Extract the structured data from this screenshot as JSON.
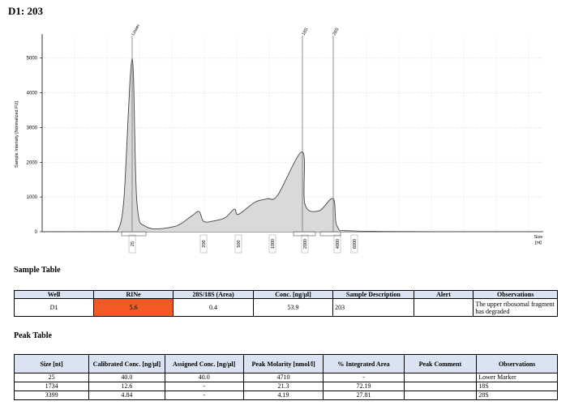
{
  "title": "D1: 203",
  "chart_data": {
    "type": "area",
    "ylabel": "Sample Intensity [Normalized FU]",
    "xlabel": "Size\n[nt]",
    "ylim": [
      0,
      5600
    ],
    "yticks": [
      0,
      1000,
      2000,
      3000,
      4000,
      5000
    ],
    "xticks": [
      "25",
      "200",
      "500",
      "1000",
      "2000",
      "4000",
      "6000"
    ],
    "peak_markers": [
      "Lower",
      "18S",
      "28S"
    ],
    "grid": true,
    "series": [
      {
        "values": [
          {
            "size": "20",
            "y": 0
          },
          {
            "size": "22",
            "y": 900
          },
          {
            "size": "25",
            "y": 5000
          },
          {
            "size": "28",
            "y": 900
          },
          {
            "size": "35",
            "y": 150
          },
          {
            "size": "100",
            "y": 150
          },
          {
            "size": "150",
            "y": 450
          },
          {
            "size": "180",
            "y": 580
          },
          {
            "size": "200",
            "y": 300
          },
          {
            "size": "250",
            "y": 300
          },
          {
            "size": "350",
            "y": 400
          },
          {
            "size": "450",
            "y": 650
          },
          {
            "size": "500",
            "y": 500
          },
          {
            "size": "700",
            "y": 850
          },
          {
            "size": "900",
            "y": 950
          },
          {
            "size": "1100",
            "y": 1050
          },
          {
            "size": "1734",
            "y": 2300
          },
          {
            "size": "2000",
            "y": 800
          },
          {
            "size": "2600",
            "y": 600
          },
          {
            "size": "3399",
            "y": 950
          },
          {
            "size": "4000",
            "y": 150
          },
          {
            "size": "6000",
            "y": 20
          },
          {
            "size": "9000",
            "y": 0
          }
        ]
      }
    ]
  },
  "sample_table": {
    "title": "Sample Table",
    "headers": [
      "Well",
      "RINe",
      "28S/18S (Area)",
      "Conc. [ng/µl]",
      "Sample Description",
      "Alert",
      "Observations"
    ],
    "rows": [
      [
        "D1",
        "5.6",
        "0.4",
        "53.9",
        "203",
        "",
        "The upper ribosomal fragment has degraded"
      ]
    ],
    "rine_color": "#f15a24"
  },
  "peak_table": {
    "title": "Peak Table",
    "headers": [
      "Size [nt]",
      "Calibrated Conc. [ng/µl]",
      "Assigned Conc. [ng/µl]",
      "Peak Molarity [nmol/l]",
      "% Integrated Area",
      "Peak Comment",
      "Observations"
    ],
    "rows": [
      [
        "25",
        "40.0",
        "40.0",
        "4710",
        "-",
        "",
        "Lower Marker"
      ],
      [
        "1734",
        "12.6",
        "-",
        "21.3",
        "72.19",
        "",
        "18S"
      ],
      [
        "3399",
        "4.84",
        "-",
        "4.19",
        "27.81",
        "",
        "28S"
      ]
    ]
  }
}
